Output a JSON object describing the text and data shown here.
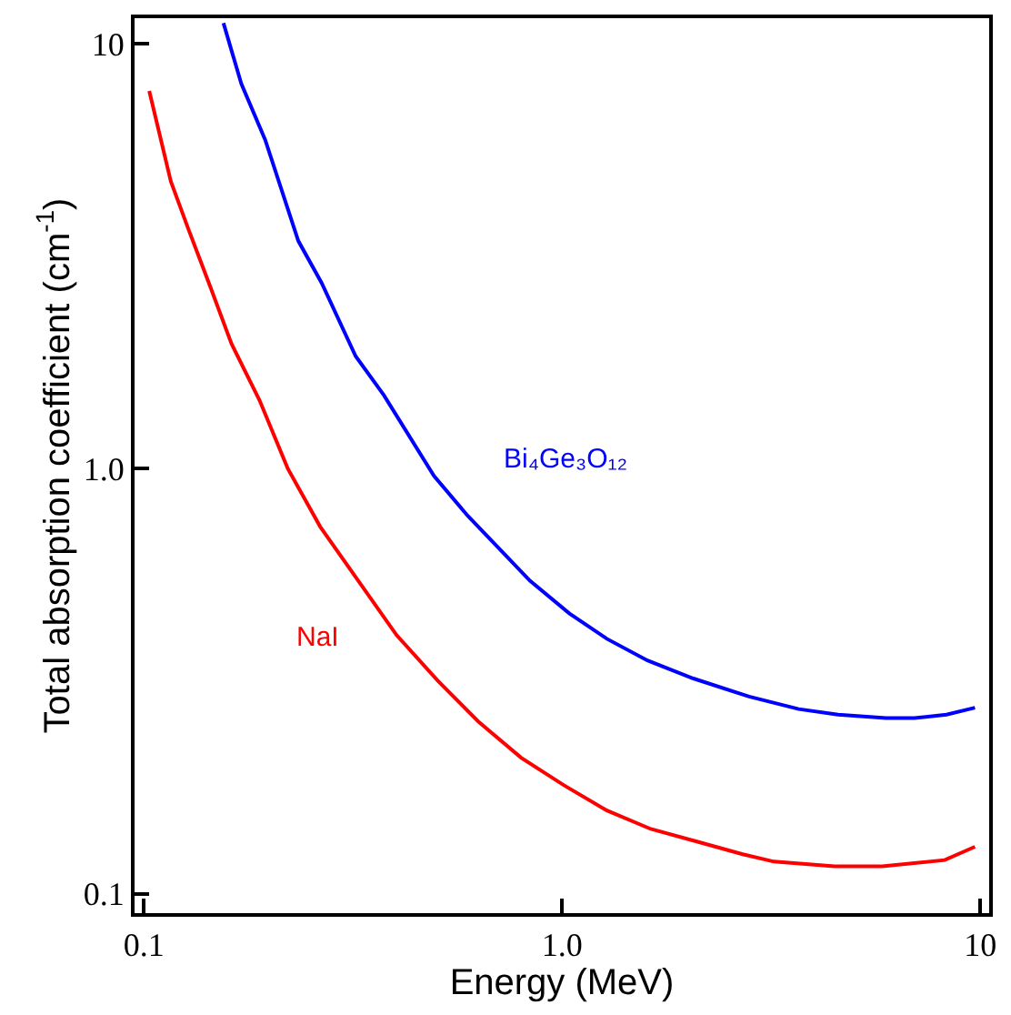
{
  "chart_data": {
    "type": "line",
    "xlabel": "Energy (MeV)",
    "ylabel": "Total absorption coefficient (cm$^{-1}$)",
    "log": "xy",
    "legend": false,
    "marker": "none",
    "line_style": "solid",
    "xlim": [
      0.095,
      10.5
    ],
    "ylim": [
      0.09,
      11.5
    ],
    "xticks": [
      0.1,
      {
        "value": 1,
        "label": "1.0"
      },
      10
    ],
    "yticks": [
      0.1,
      {
        "value": 1,
        "label": "1.0"
      },
      10
    ],
    "series": [
      {
        "name": "Bi₄Ge₃O₁₂",
        "color": "#0000ff",
        "x": [
          0.155,
          0.171,
          0.195,
          0.234,
          0.266,
          0.321,
          0.375,
          0.494,
          0.595,
          0.838,
          1.04,
          1.28,
          1.6,
          2.06,
          2.8,
          3.68,
          4.57,
          5.95,
          6.96,
          8.3,
          9.71
        ],
        "values": [
          11.2,
          8.06,
          5.95,
          3.44,
          2.74,
          1.84,
          1.49,
          0.962,
          0.775,
          0.545,
          0.457,
          0.398,
          0.354,
          0.321,
          0.291,
          0.272,
          0.264,
          0.259,
          0.259,
          0.264,
          0.274
        ]
      },
      {
        "name": "NaI",
        "color": "#ff0000",
        "x": [
          0.103,
          0.116,
          0.128,
          0.144,
          0.162,
          0.189,
          0.221,
          0.264,
          0.33,
          0.402,
          0.503,
          0.631,
          0.798,
          1.01,
          1.28,
          1.63,
          2.08,
          2.69,
          3.21,
          4.48,
          5.83,
          8.22,
          9.71
        ],
        "values": [
          7.75,
          4.75,
          3.65,
          2.69,
          1.97,
          1.45,
          1.0,
          0.731,
          0.535,
          0.406,
          0.318,
          0.254,
          0.209,
          0.18,
          0.157,
          0.142,
          0.133,
          0.124,
          0.119,
          0.116,
          0.116,
          0.12,
          0.129
        ]
      }
    ]
  }
}
